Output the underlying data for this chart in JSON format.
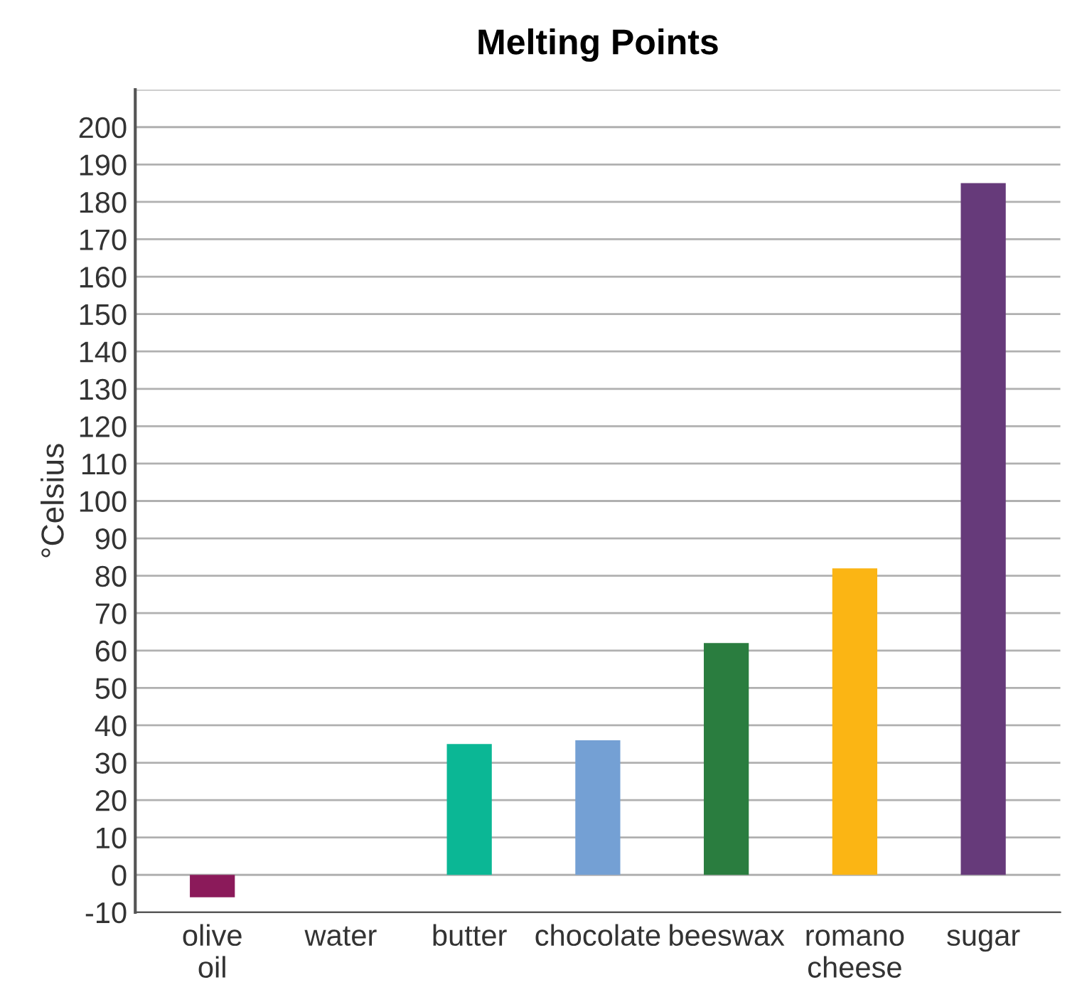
{
  "chart_data": {
    "type": "bar",
    "title": "Melting Points",
    "ylabel": "°Celsius",
    "categories": [
      "olive\noil",
      "water",
      "butter",
      "chocolate",
      "beeswax",
      "romano\ncheese",
      "sugar"
    ],
    "values": [
      -6,
      0,
      35,
      36,
      62,
      82,
      185
    ],
    "colors": [
      "#8b1a5a",
      "#6a2a4a",
      "#0bb795",
      "#74a0d4",
      "#2a7d3f",
      "#fbb514",
      "#663a7a"
    ],
    "ylim": [
      -10,
      210
    ],
    "yticks": [
      -10,
      0,
      10,
      20,
      30,
      40,
      50,
      60,
      70,
      80,
      90,
      100,
      110,
      120,
      130,
      140,
      150,
      160,
      170,
      180,
      190,
      200,
      {
        "value": 210,
        "label": null
      }
    ],
    "grid": "y",
    "legend": false
  }
}
